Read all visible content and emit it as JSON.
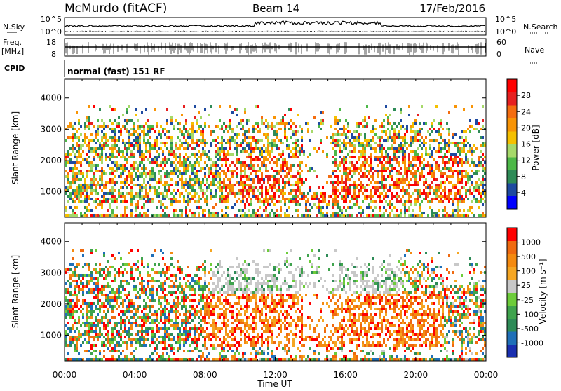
{
  "header": {
    "station": "McMurdo (fitACF)",
    "beam": "Beam 14",
    "date": "17/Feb/2016"
  },
  "status_panel": {
    "left_labels": {
      "nsky": "N.Sky",
      "freq": "Freq.",
      "mhz": "[MHz]",
      "cpid": "CPID"
    },
    "right_labels": {
      "nsearch": "N.Search",
      "nave": "Nave"
    },
    "noise_ticks_left": [
      "10^5",
      "10^0"
    ],
    "noise_ticks_right": [
      "10^5",
      "10^0"
    ],
    "freq_ticks": [
      "18",
      "8"
    ],
    "nave_ticks": [
      "60",
      "0"
    ],
    "cpid_text": "normal (fast) 151 RF"
  },
  "chart_data": [
    {
      "type": "heatmap",
      "name": "power",
      "ylabel": "Slant Range [km]",
      "yticks": [
        "4000",
        "3000",
        "2000",
        "1000"
      ],
      "ylim": [
        180,
        4600
      ],
      "colorbar_label": "Power [dB]",
      "colorbar_ticks": [
        "28",
        "24",
        "20",
        "16",
        "12",
        "8",
        "4"
      ],
      "colorbar_colors": [
        "#0000ff",
        "#1e4aa0",
        "#2e8b57",
        "#4db848",
        "#a6d96a",
        "#f5c000",
        "#f89406",
        "#f46d10",
        "#e62020",
        "#ff0000"
      ]
    },
    {
      "type": "heatmap",
      "name": "velocity",
      "xlabel": "Time UT",
      "ylabel": "Slant Range [km]",
      "yticks": [
        "4000",
        "3000",
        "2000",
        "1000"
      ],
      "ylim": [
        180,
        4600
      ],
      "colorbar_label": "Velocity [m s⁻¹]",
      "colorbar_ticks": [
        "1000",
        "500",
        "100",
        "25",
        "-25",
        "-100",
        "-500",
        "-1000"
      ],
      "colorbar_colors": [
        "#1a2fb0",
        "#1f6fb8",
        "#2e8b57",
        "#3fa34d",
        "#6dcc3a",
        "#c8c8c8",
        "#f5a623",
        "#f48a10",
        "#ef6a10",
        "#ff0000"
      ]
    }
  ],
  "time_axis": [
    "00:00",
    "04:00",
    "08:00",
    "12:00",
    "16:00",
    "20:00",
    "00:00"
  ]
}
